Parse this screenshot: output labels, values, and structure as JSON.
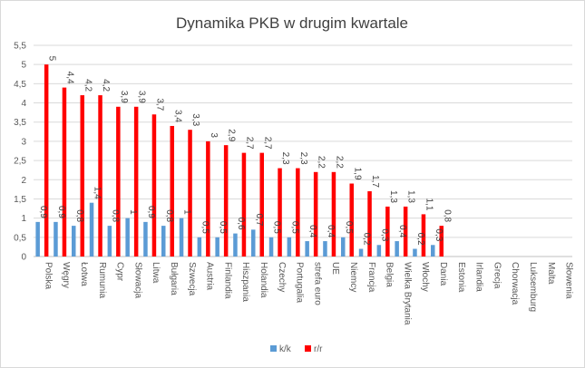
{
  "chart_data": {
    "type": "bar",
    "title": "Dynamika PKB w drugim kwartale",
    "xlabel": "",
    "ylabel": "",
    "ylim": [
      0,
      5.5
    ],
    "yticks": [
      "0",
      "0,5",
      "1",
      "1,5",
      "2",
      "2,5",
      "3",
      "3,5",
      "4",
      "4,5",
      "5",
      "5,5"
    ],
    "grid": true,
    "legend_position": "bottom",
    "categories": [
      "Polska",
      "Węgry",
      "Łotwa",
      "Rumunia",
      "Cypr",
      "Słowacja",
      "Litwa",
      "Bułgaria",
      "Szwecja",
      "Austria",
      "Finlandia",
      "Hiszpania",
      "Holandia",
      "Czechy",
      "Portugalia",
      "strefa euro",
      "UE",
      "Niemcy",
      "Francja",
      "Belgia",
      "Wielka Brytania",
      "Włochy",
      "Dania",
      "Estonia",
      "Irlandia",
      "Grecja",
      "Chorwacja",
      "Luksemburg",
      "Malta",
      "Słowenia"
    ],
    "series": [
      {
        "name": "k/k",
        "color": "#5b9bd5",
        "values": [
          0.9,
          0.9,
          0.8,
          1.4,
          0.8,
          1,
          0.9,
          0.8,
          1,
          0.5,
          0.5,
          0.6,
          0.7,
          0.5,
          0.5,
          0.4,
          0.4,
          0.5,
          0.2,
          0.3,
          0.4,
          0.2,
          0.3,
          null,
          null,
          null,
          null,
          null,
          null,
          null
        ],
        "labels": [
          "0,9",
          "0,9",
          "0,8",
          "1,4",
          "0,8",
          "1",
          "0,9",
          "0,8",
          "1",
          "0,5",
          "0,5",
          "0,6",
          "0,7",
          "0,5",
          "0,5",
          "0,4",
          "0,4",
          "0,5",
          "0,2",
          "0,3",
          "0,4",
          "0,2",
          "0,3",
          "",
          "",
          "",
          "",
          "",
          "",
          ""
        ]
      },
      {
        "name": "r/r",
        "color": "#ff0000",
        "values": [
          5,
          4.4,
          4.2,
          4.2,
          3.9,
          3.9,
          3.7,
          3.4,
          3.3,
          3,
          2.9,
          2.7,
          2.7,
          2.3,
          2.3,
          2.2,
          2.2,
          1.9,
          1.7,
          1.3,
          1.3,
          1.1,
          0.8,
          null,
          null,
          null,
          null,
          null,
          null,
          null
        ],
        "labels": [
          "5",
          "4,4",
          "4,2",
          "4,2",
          "3,9",
          "3,9",
          "3,7",
          "3,4",
          "3,3",
          "3",
          "2,9",
          "2,7",
          "2,7",
          "2,3",
          "2,3",
          "2,2",
          "2,2",
          "1,9",
          "1,7",
          "1,3",
          "1,3",
          "1,1",
          "0,8",
          "",
          "",
          "",
          "",
          "",
          "",
          ""
        ]
      }
    ]
  }
}
